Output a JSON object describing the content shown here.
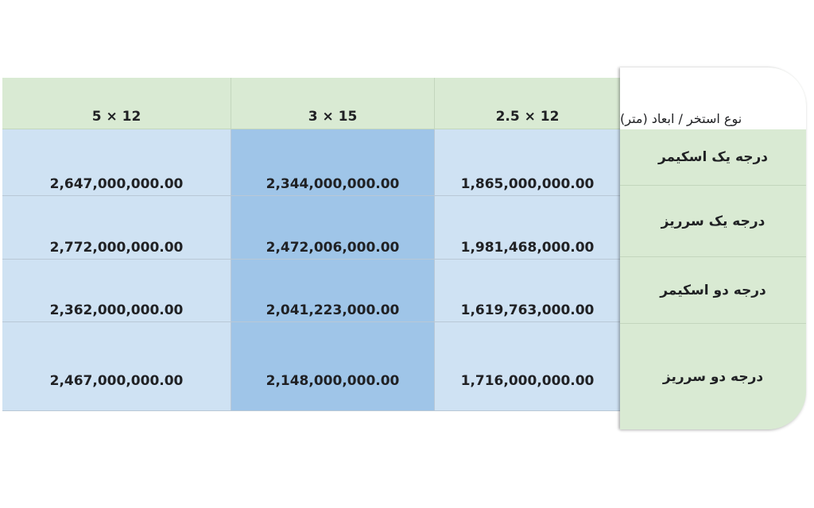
{
  "table": {
    "row_header_title": "نوع استخر / ابعاد (متر)",
    "columns": [
      "5 × 12",
      "3 × 15",
      "2.5 × 12"
    ],
    "rows": [
      {
        "type": "درجه یک اسکیمر",
        "values": [
          "2,647,000,000.00",
          "2,344,000,000.00",
          "1,865,000,000.00"
        ]
      },
      {
        "type": "درجه یک سرریز",
        "values": [
          "2,772,000,000.00",
          "2,472,006,000.00",
          "1,981,468,000.00"
        ]
      },
      {
        "type": "درجه دو اسکیمر",
        "values": [
          "2,362,000,000.00",
          "2,041,223,000.00",
          "1,619,763,000.00"
        ]
      },
      {
        "type": "درجه دو سرریز",
        "values": [
          "2,467,000,000.00",
          "2,148,000,000.00",
          "1,716,000,000.00"
        ]
      }
    ]
  },
  "colors": {
    "header_green": "#d9ead3",
    "cell_light_blue": "#cfe2f3",
    "cell_mid_blue": "#9fc5e8"
  }
}
